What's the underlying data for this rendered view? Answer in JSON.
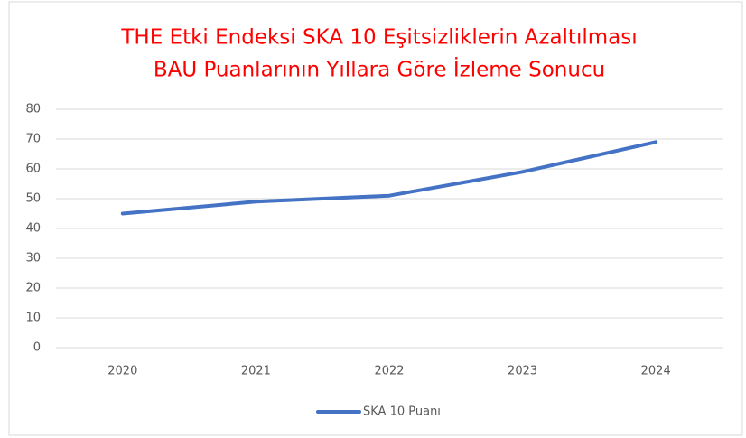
{
  "chart_data": {
    "type": "line",
    "title": [
      "THE Etki Endeksi SKA 10 Eşitsizliklerin Azaltılması",
      "BAU Puanlarının Yıllara Göre İzleme Sonucu"
    ],
    "categories": [
      "2020",
      "2021",
      "2022",
      "2023",
      "2024"
    ],
    "series": [
      {
        "name": "SKA 10 Puanı",
        "color": "#4472c4",
        "values": [
          45,
          49,
          51,
          59,
          69
        ]
      }
    ],
    "ylim": [
      0,
      80
    ],
    "yticks": [
      0,
      10,
      20,
      30,
      40,
      50,
      60,
      70,
      80
    ],
    "grid": true,
    "legend": "bottom"
  }
}
